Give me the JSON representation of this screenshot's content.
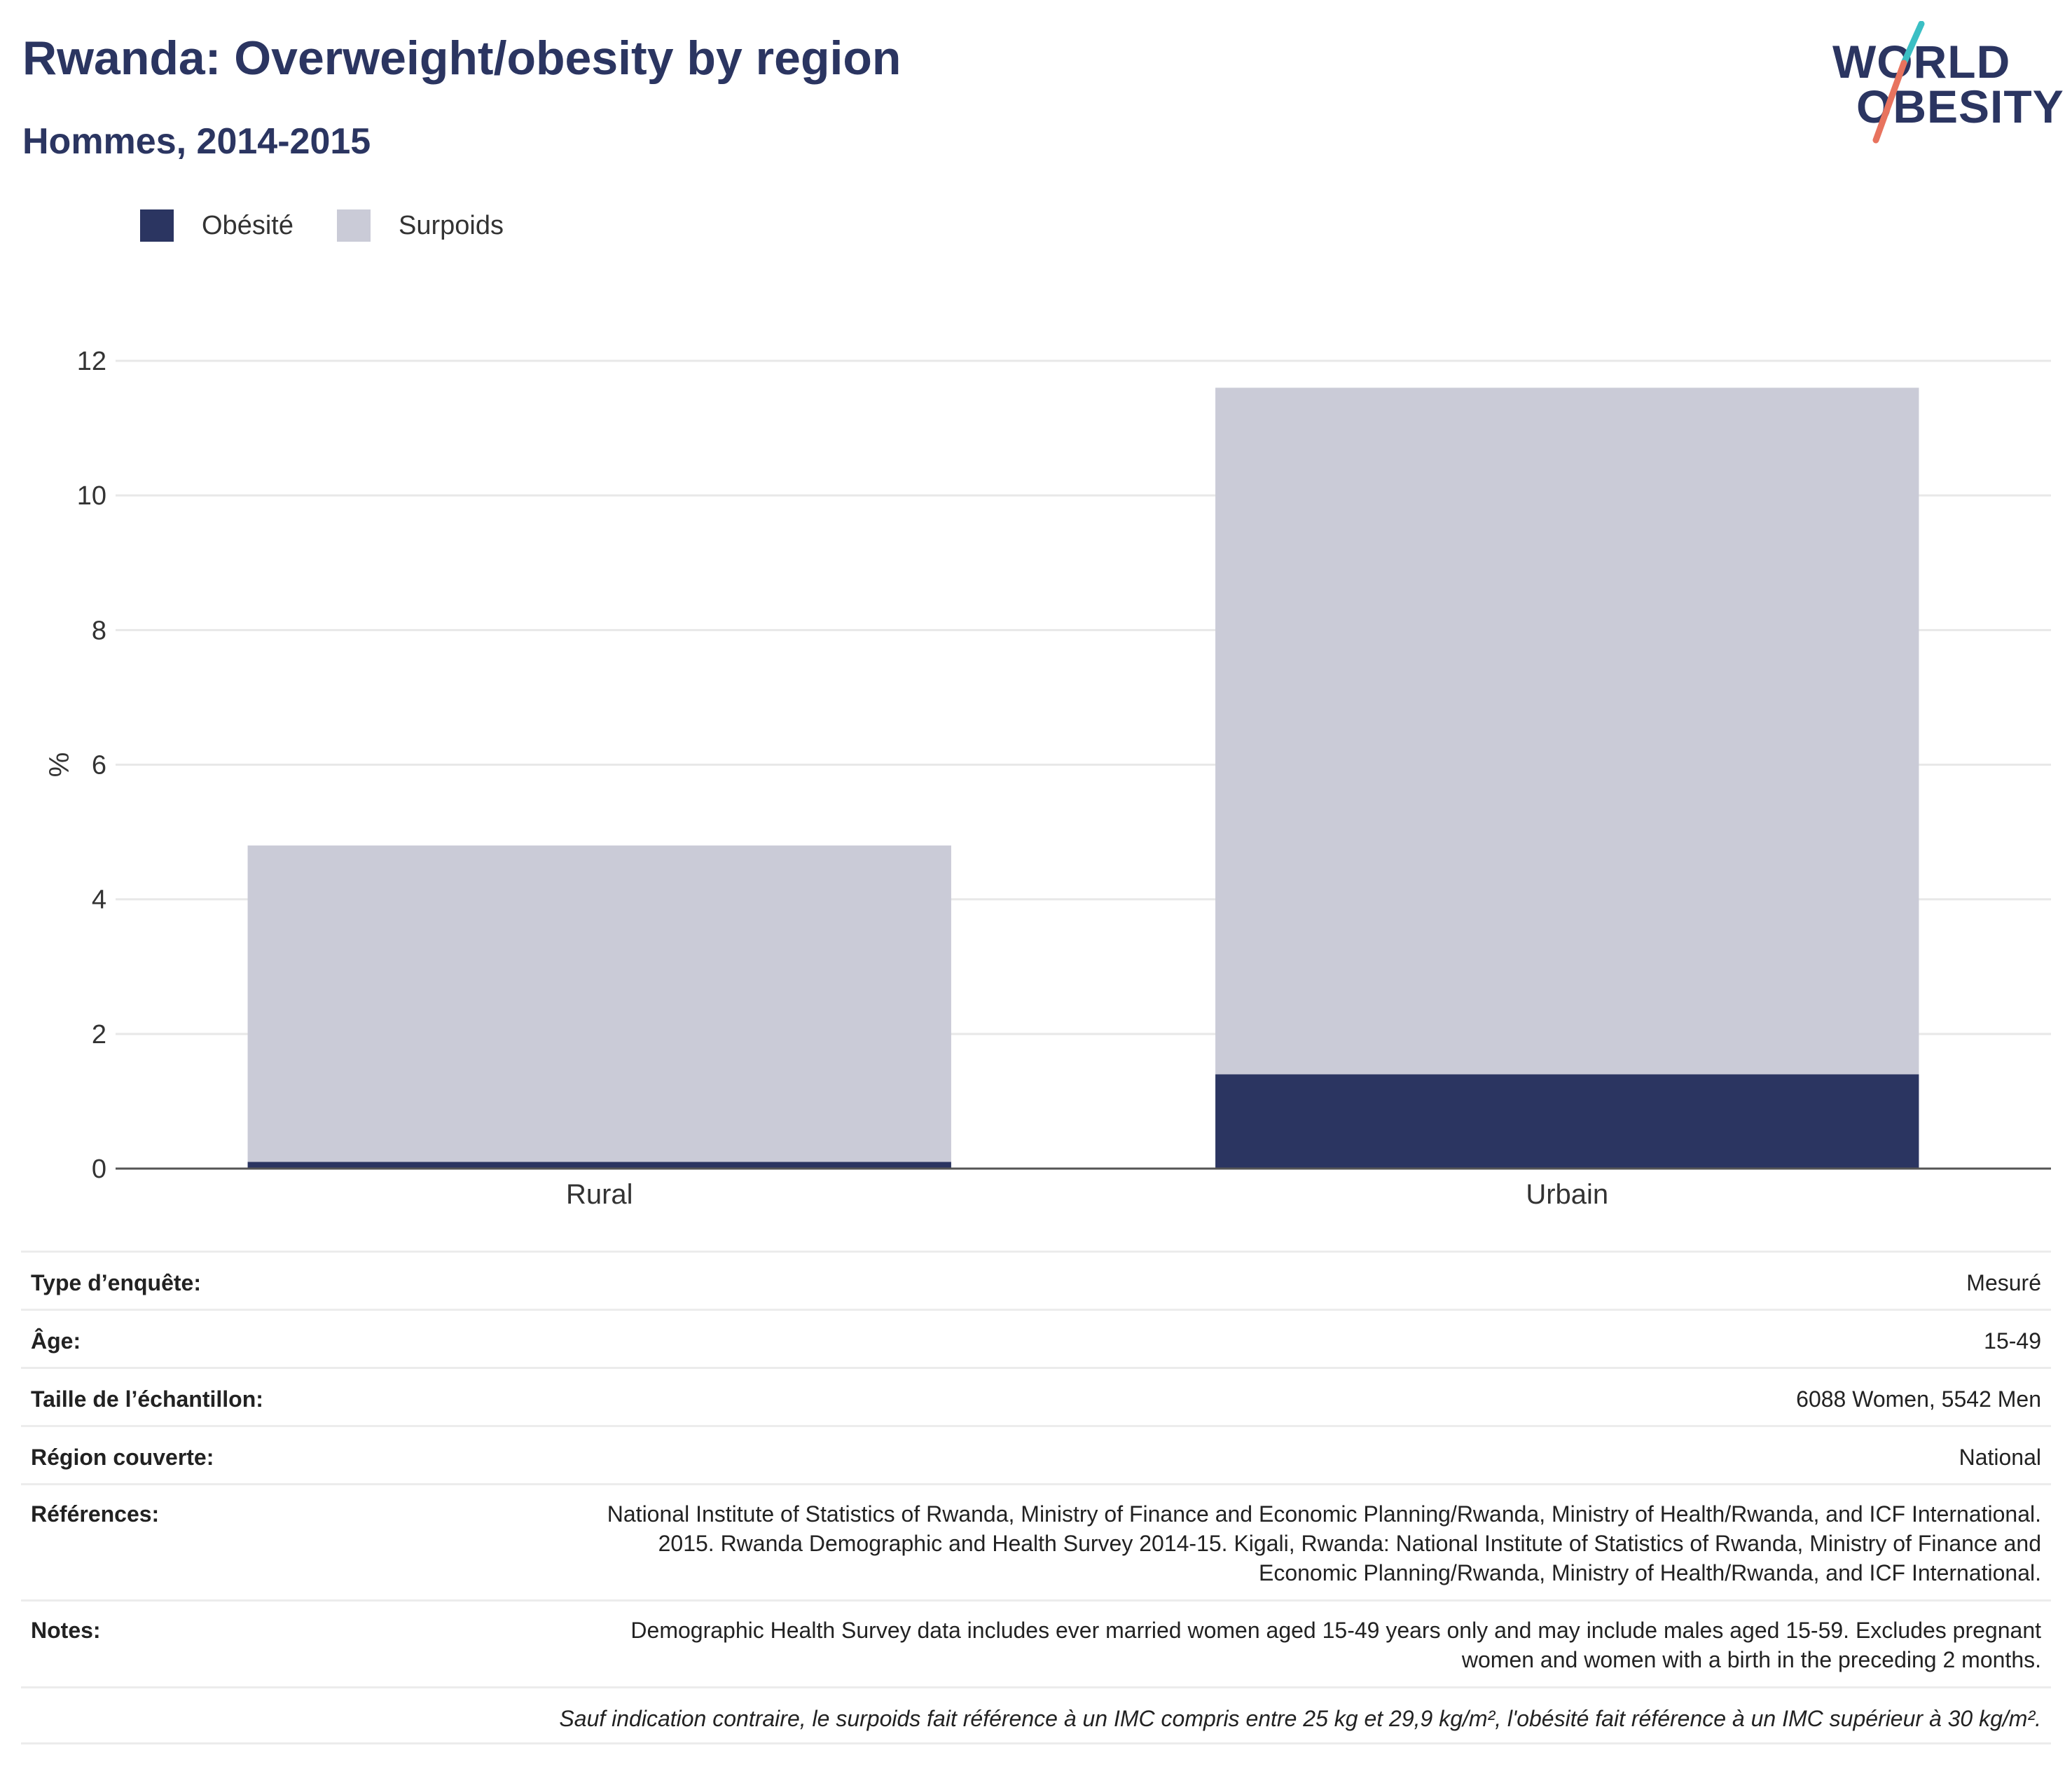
{
  "header": {
    "title": "Rwanda: Overweight/obesity by region",
    "subtitle": "Hommes, 2014-2015"
  },
  "logo": {
    "line1": "WORLD",
    "line2": "OBESITY",
    "colors": {
      "text": "#2b3561",
      "slash_top": "#3bbfc4",
      "slash_bottom": "#e8735e"
    }
  },
  "legend": [
    {
      "label": "Obésité",
      "color": "#2b3561"
    },
    {
      "label": "Surpoids",
      "color": "#cacbd7"
    }
  ],
  "chart_data": {
    "type": "bar",
    "stacked": true,
    "categories": [
      "Rural",
      "Urbain"
    ],
    "series": [
      {
        "name": "Obésité",
        "color": "#2b3561",
        "values": [
          0.1,
          1.4
        ]
      },
      {
        "name": "Surpoids",
        "color": "#cacbd7",
        "values": [
          4.7,
          10.2
        ]
      }
    ],
    "ylabel": "%",
    "ylim": [
      0,
      12
    ],
    "yticks": [
      0,
      2,
      4,
      6,
      8,
      10,
      12
    ],
    "grid": true,
    "legend_position": "top-left"
  },
  "info": [
    {
      "key": "Type d’enquête:",
      "value": "Mesuré"
    },
    {
      "key": "Âge:",
      "value": "15-49"
    },
    {
      "key": "Taille de l’échantillon:",
      "value": "6088 Women, 5542 Men"
    },
    {
      "key": "Région couverte:",
      "value": "National"
    },
    {
      "key": "Références:",
      "value": "National Institute of Statistics of Rwanda, Ministry of Finance and Economic Planning/Rwanda, Ministry of Health/Rwanda, and ICF International. 2015. Rwanda Demographic and Health Survey 2014-15. Kigali, Rwanda: National Institute of Statistics of Rwanda, Ministry of Finance and Economic Planning/Rwanda, Ministry of Health/Rwanda, and ICF International."
    },
    {
      "key": "Notes:",
      "value": "Demographic Health Survey data includes ever married women aged 15-49 years only and may include males aged 15-59. Excludes pregnant women and women with a birth in the preceding 2 months."
    }
  ],
  "footnote": "Sauf indication contraire, le surpoids fait référence à un IMC compris entre 25 kg et 29,9 kg/m², l'obésité fait référence à un IMC supérieur à 30 kg/m²."
}
